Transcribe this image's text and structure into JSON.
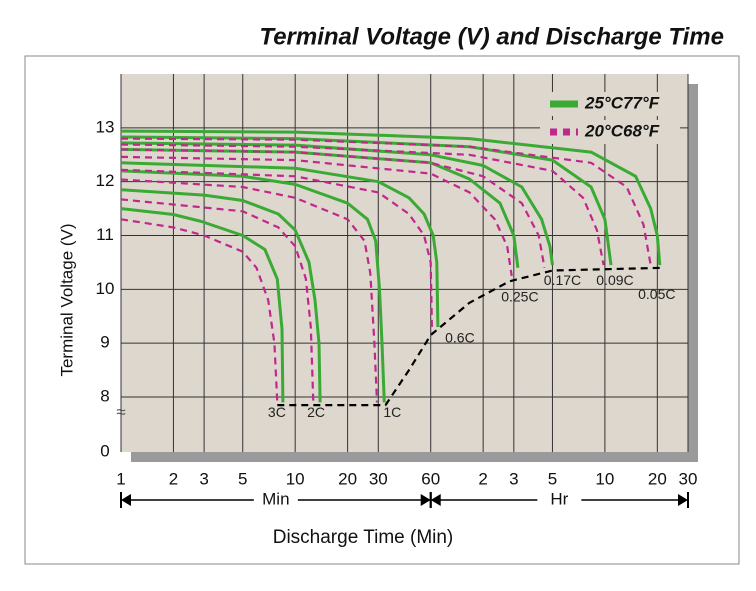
{
  "chart_data": {
    "type": "line",
    "title": "Terminal Voltage (V) and Discharge Time",
    "x_label": "Discharge Time (Min)",
    "y_label": "Terminal Voltage (V)",
    "log_x": true,
    "grid": true,
    "legend_position": "upper right",
    "xlim": [
      1,
      1800
    ],
    "ylim": [
      0,
      14
    ],
    "axis_break": [
      0,
      8
    ],
    "axis_break_symbol": "≈",
    "yticks": [
      0,
      8,
      9,
      10,
      11,
      12,
      13
    ],
    "xticks": [
      1,
      2,
      3,
      5,
      10,
      20,
      30,
      60,
      {
        "value": 120,
        "label": "2"
      },
      {
        "value": 180,
        "label": "3"
      },
      {
        "value": 300,
        "label": "5"
      },
      {
        "value": 600,
        "label": "10"
      },
      {
        "value": 1200,
        "label": "20"
      },
      {
        "value": 1800,
        "label": "30"
      }
    ],
    "x_groups": [
      {
        "label": "Min",
        "range": [
          1,
          60
        ]
      },
      {
        "label": "Hr",
        "range": [
          60,
          1800
        ]
      }
    ],
    "legend": [
      {
        "name": "25°C77°F",
        "color": "#3aaa35",
        "style": "solid"
      },
      {
        "name": "20°C68°F",
        "color": "#c0288c",
        "style": "dashed"
      }
    ],
    "series": [
      {
        "label": "3C",
        "legend": 0,
        "x": [
          1,
          2,
          2.9,
          5,
          6.7,
          7.9,
          8.4,
          8.5
        ],
        "values": [
          11.5,
          11.39,
          11.26,
          11.0,
          10.74,
          10.19,
          9.26,
          7.9
        ]
      },
      {
        "legend": 1,
        "x": [
          1,
          2,
          3,
          5,
          6,
          7,
          7.6,
          7.9
        ],
        "values": [
          11.3,
          11.15,
          11.0,
          10.7,
          10.4,
          9.8,
          9.0,
          7.9
        ]
      },
      {
        "label": "2C",
        "legend": 0,
        "x": [
          1,
          3,
          5,
          8,
          10,
          12,
          13,
          13.7,
          13.9
        ],
        "values": [
          11.85,
          11.75,
          11.65,
          11.4,
          11.1,
          10.5,
          9.8,
          9.0,
          7.9
        ]
      },
      {
        "legend": 1,
        "x": [
          1,
          5,
          8,
          10,
          11.5,
          12.3,
          12.7
        ],
        "values": [
          11.67,
          11.45,
          11.15,
          10.8,
          10.2,
          9.3,
          7.9
        ]
      },
      {
        "label": "1C",
        "legend": 0,
        "x": [
          1,
          5,
          10,
          20,
          26,
          29,
          30.5,
          31.5,
          32.5
        ],
        "values": [
          12.2,
          12.1,
          11.95,
          11.6,
          11.3,
          10.9,
          10.0,
          9.0,
          7.9
        ]
      },
      {
        "legend": 1,
        "x": [
          1,
          5,
          10,
          20,
          25,
          27,
          28.5,
          29.5
        ],
        "values": [
          12.04,
          11.9,
          11.7,
          11.3,
          10.9,
          10.3,
          9.0,
          7.9
        ]
      },
      {
        "label": "0.6C",
        "legend": 0,
        "x": [
          1,
          10,
          30,
          45,
          55,
          62,
          65,
          66
        ],
        "values": [
          12.35,
          12.25,
          12.0,
          11.7,
          11.4,
          11.0,
          10.5,
          9.3
        ]
      },
      {
        "legend": 1,
        "x": [
          1,
          10,
          30,
          45,
          55,
          60,
          61
        ],
        "values": [
          12.22,
          12.1,
          11.8,
          11.4,
          11.0,
          10.5,
          9.2
        ]
      },
      {
        "label": "0.25C",
        "legend": 0,
        "x": [
          1,
          10,
          60,
          100,
          150,
          180,
          190
        ],
        "values": [
          12.6,
          12.55,
          12.35,
          12.05,
          11.6,
          11.0,
          10.4
        ]
      },
      {
        "legend": 1,
        "x": [
          1,
          10,
          60,
          100,
          140,
          165,
          175
        ],
        "values": [
          12.46,
          12.4,
          12.15,
          11.8,
          11.3,
          10.8,
          10.25
        ]
      },
      {
        "label": "0.17C",
        "legend": 0,
        "x": [
          1,
          10,
          60,
          120,
          200,
          260,
          290,
          300
        ],
        "values": [
          12.72,
          12.68,
          12.5,
          12.3,
          11.9,
          11.3,
          10.8,
          10.45
        ]
      },
      {
        "legend": 1,
        "x": [
          1,
          10,
          60,
          120,
          200,
          250,
          270
        ],
        "values": [
          12.6,
          12.55,
          12.35,
          12.1,
          11.6,
          11.0,
          10.4
        ]
      },
      {
        "label": "0.09C",
        "legend": 0,
        "x": [
          1,
          10,
          100,
          300,
          500,
          600,
          650
        ],
        "values": [
          12.83,
          12.8,
          12.65,
          12.4,
          11.9,
          11.3,
          10.45
        ]
      },
      {
        "legend": 1,
        "x": [
          1,
          10,
          100,
          300,
          450,
          540,
          590
        ],
        "values": [
          12.69,
          12.65,
          12.5,
          12.2,
          11.7,
          11.1,
          10.45
        ]
      },
      {
        "label": "0.05C",
        "legend": 0,
        "x": [
          1,
          10,
          100,
          500,
          900,
          1100,
          1200,
          1240
        ],
        "values": [
          12.94,
          12.92,
          12.8,
          12.55,
          12.1,
          11.5,
          11.0,
          10.45
        ]
      },
      {
        "legend": 1,
        "x": [
          1,
          10,
          100,
          500,
          800,
          1000,
          1100
        ],
        "values": [
          12.8,
          12.78,
          12.65,
          12.35,
          11.9,
          11.2,
          10.45
        ]
      },
      {
        "color": "#000000",
        "style": "dashed",
        "x": [
          7.9,
          33,
          45,
          60,
          100,
          170,
          300,
          1300
        ],
        "values": [
          7.85,
          7.85,
          8.5,
          9.15,
          9.75,
          10.15,
          10.35,
          10.4
        ]
      }
    ]
  }
}
